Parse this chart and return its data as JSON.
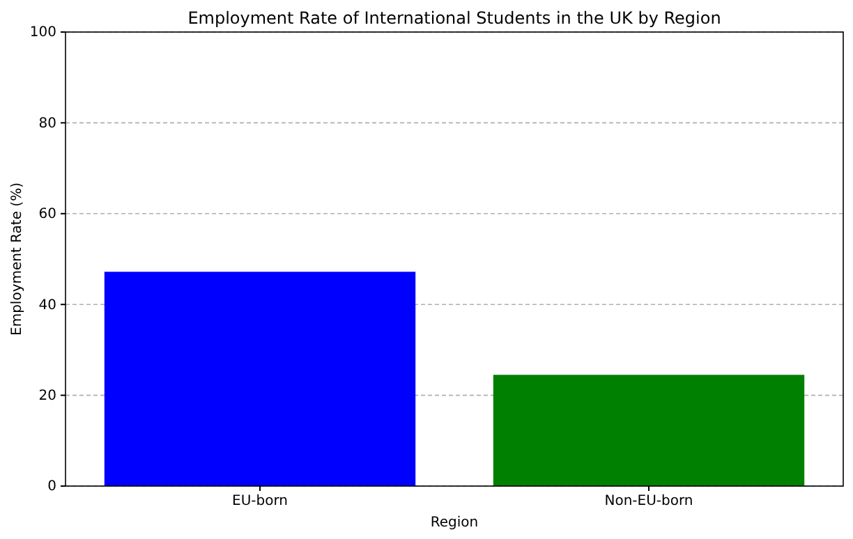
{
  "chart_data": {
    "type": "bar",
    "title": "Employment Rate of International Students in the UK by Region",
    "xlabel": "Region",
    "ylabel": "Employment Rate (%)",
    "categories": [
      "EU-born",
      "Non-EU-born"
    ],
    "values": [
      47.2,
      24.5
    ],
    "colors": [
      "#0000ff",
      "#008000"
    ],
    "ylim": [
      0,
      100
    ],
    "yticks": [
      0,
      20,
      40,
      60,
      80,
      100
    ],
    "grid": "y"
  }
}
